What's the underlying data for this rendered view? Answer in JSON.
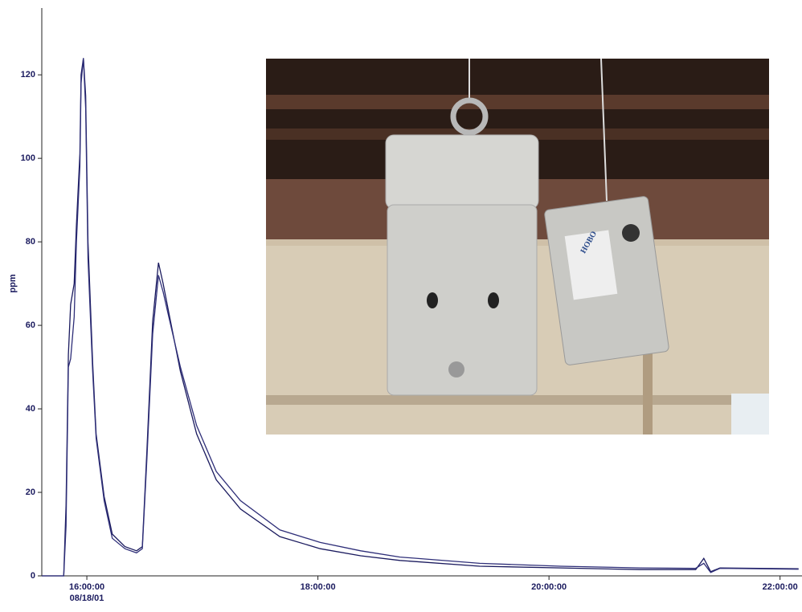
{
  "chart_data": {
    "type": "line",
    "y_label": "ppm",
    "x_date_label": "08/18/01",
    "x": [
      15.61,
      15.8,
      15.82,
      15.84,
      15.86,
      15.89,
      15.91,
      15.94,
      15.95,
      15.97,
      15.99,
      16.01,
      16.05,
      16.08,
      16.15,
      16.22,
      16.33,
      16.43,
      16.48,
      16.52,
      16.57,
      16.62,
      16.66,
      16.71,
      16.81,
      16.95,
      17.12,
      17.33,
      17.67,
      18.02,
      18.37,
      18.71,
      19.4,
      20.1,
      20.79,
      21.27,
      21.34,
      21.4,
      21.48,
      22.16
    ],
    "series": [
      {
        "color": "#1a1a5e",
        "values": [
          0,
          0,
          17,
          53,
          65,
          70,
          84,
          101,
          120,
          124,
          115,
          80,
          51,
          34,
          19,
          10,
          7,
          6,
          7,
          30,
          61,
          75,
          70,
          63,
          49,
          34,
          23,
          16,
          9.4,
          6.5,
          4.8,
          3.7,
          2.3,
          1.9,
          1.5,
          1.5,
          4.2,
          1,
          1.9,
          1.7
        ]
      },
      {
        "color": "#2e2e78",
        "values": [
          0,
          0,
          12,
          50,
          52,
          62,
          80,
          98,
          118,
          124,
          112,
          76,
          49,
          33,
          18,
          9,
          6.5,
          5.5,
          6.5,
          28,
          58,
          72,
          68,
          62,
          50,
          36,
          25,
          18,
          11,
          8,
          6,
          4.5,
          3,
          2.3,
          1.9,
          1.8,
          3,
          0.8,
          1.8,
          1.6
        ]
      }
    ],
    "xlim": [
      15.61,
      22.19
    ],
    "xticks": [
      {
        "value": 16,
        "label": "16:00:00"
      },
      {
        "value": 18,
        "label": "18:00:00"
      },
      {
        "value": 20,
        "label": "20:00:00"
      },
      {
        "value": 22,
        "label": "22:00:00"
      }
    ],
    "ylim": [
      0,
      136
    ],
    "yticks": [
      0,
      20,
      40,
      60,
      80,
      100,
      120
    ],
    "grid": false,
    "photo_label": "HOBO"
  }
}
